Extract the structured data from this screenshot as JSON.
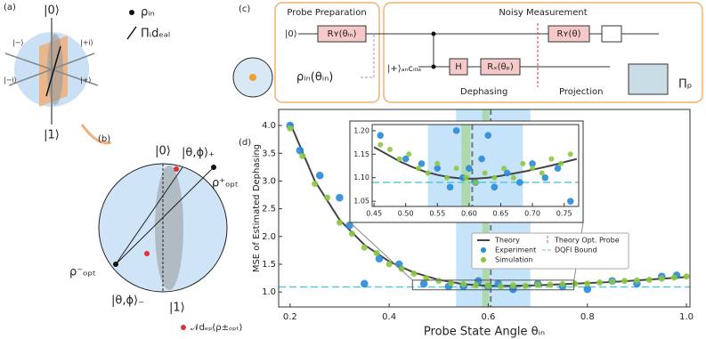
{
  "panel_a": {
    "label": "(a)",
    "states": [
      "|0⟩",
      "|1⟩",
      "|−⟩",
      "|+i⟩",
      "|−i⟩",
      "|+⟩"
    ],
    "legend": [
      "ρᵢₙ",
      "Πᵢdₑₐₗ"
    ]
  },
  "panel_b": {
    "label": "(b)",
    "texts": [
      "|0⟩",
      "|θ,ϕ⟩₊",
      "ρ⁺ₒₚₜ",
      "ρ⁻ₒₚₜ",
      "|θ,ϕ⟩₋",
      "|1⟩",
      "𝒩dₑₚ(ρ±ₒₚₜ)"
    ]
  },
  "panel_c": {
    "label": "(c)",
    "prep_title": "Probe Preparation",
    "meas_title": "Noisy Measurement",
    "ket0": "|0⟩",
    "ry_in": "Rʏ(θᵢₙ)",
    "rho": "ρᵢₙ(θᵢₙ)",
    "ancilla": "|+⟩ₐₙcᵢₗₗₐ",
    "h": "H",
    "rx": "Rₓ(θₚ)",
    "ry": "Rʏ(θ)",
    "dephasing": "Dephasing",
    "projection": "Projection",
    "pi_p": "Πₚ"
  },
  "chart_data": [
    {
      "type": "scatter",
      "label": "(d)",
      "xlabel": "Probe State Angle θᵢₙ",
      "ylabel": "MSE of Estimated Dephasing",
      "xlim": [
        0.177,
        1.007
      ],
      "ylim": [
        0.73,
        4.29
      ],
      "xticks": [
        0.2,
        0.4,
        0.6,
        0.8,
        {
          "value": 1,
          "label": "1.0"
        }
      ],
      "yticks": [
        {
          "value": 1,
          "label": "1.0"
        },
        1.5,
        {
          "value": 2,
          "label": "2.0"
        },
        2.5,
        {
          "value": 3,
          "label": "3.0"
        },
        3.5,
        {
          "value": 4,
          "label": "4.0"
        }
      ],
      "bands": [
        {
          "range": [
            0.535,
            0.685
          ],
          "color": "#9fd0f5"
        },
        {
          "range": [
            0.588,
            0.602
          ],
          "color": "#9fd17a"
        }
      ],
      "vline": {
        "name": "Theory Opt. Probe",
        "x": 0.605,
        "color": "#777777"
      },
      "hline": {
        "name": "DQFI Bound",
        "y": 1.09,
        "color": "#5bc8d6"
      },
      "series": [
        {
          "name": "Theory",
          "mode": "line",
          "color": "#444444",
          "x": [
            0.2,
            0.25,
            0.3,
            0.35,
            0.4,
            0.45,
            0.5,
            0.55,
            0.6,
            0.65,
            0.7,
            0.75,
            0.8,
            0.85,
            0.9,
            0.95,
            1.0
          ],
          "values": [
            4.05,
            3.0,
            2.3,
            1.85,
            1.55,
            1.35,
            1.22,
            1.14,
            1.11,
            1.11,
            1.12,
            1.14,
            1.16,
            1.18,
            1.21,
            1.24,
            1.27
          ]
        },
        {
          "name": "Experiment",
          "mode": "markers",
          "color": "#2a8ad8",
          "x": [
            0.2,
            0.22,
            0.26,
            0.3,
            0.32,
            0.35,
            0.38,
            0.42,
            0.47,
            0.52,
            0.55,
            0.58,
            0.6,
            0.62,
            0.65,
            0.7,
            0.75,
            0.8,
            0.85,
            0.9,
            0.95,
            0.98
          ],
          "values": [
            4.0,
            3.55,
            3.1,
            2.7,
            2.2,
            1.15,
            1.6,
            1.5,
            1.15,
            1.1,
            1.1,
            1.2,
            1.1,
            1.15,
            1.05,
            1.15,
            1.1,
            1.05,
            1.2,
            1.15,
            1.28,
            1.3
          ]
        },
        {
          "name": "Simulation",
          "mode": "markers",
          "color": "#8cc63f",
          "x": [
            0.2,
            0.225,
            0.25,
            0.275,
            0.3,
            0.325,
            0.35,
            0.375,
            0.4,
            0.425,
            0.45,
            0.475,
            0.5,
            0.525,
            0.55,
            0.575,
            0.6,
            0.625,
            0.65,
            0.675,
            0.7,
            0.725,
            0.75,
            0.775,
            0.8,
            0.825,
            0.85,
            0.875,
            0.9,
            0.925,
            0.95,
            0.975,
            1.0
          ],
          "values": [
            3.95,
            3.45,
            2.95,
            2.7,
            2.25,
            2.05,
            1.8,
            1.7,
            1.5,
            1.42,
            1.33,
            1.25,
            1.2,
            1.16,
            1.14,
            1.12,
            1.11,
            1.1,
            1.12,
            1.11,
            1.13,
            1.13,
            1.14,
            1.15,
            1.15,
            1.17,
            1.19,
            1.2,
            1.21,
            1.22,
            1.24,
            1.26,
            1.28
          ]
        }
      ]
    },
    {
      "type": "scatter",
      "xlim": [
        0.447,
        0.773
      ],
      "ylim": [
        1.039,
        1.213
      ],
      "xticks": [
        0.45,
        {
          "value": 0.5,
          "label": "0.50"
        },
        0.55,
        {
          "value": 0.6,
          "label": "0.60"
        },
        0.65,
        {
          "value": 0.7,
          "label": "0.70"
        },
        0.75
      ],
      "yticks": [
        1.05,
        {
          "value": 1.1,
          "label": "1.10"
        },
        1.15,
        {
          "value": 1.2,
          "label": "1.20"
        }
      ],
      "bands": [
        {
          "range": [
            0.535,
            0.685
          ],
          "color": "#9fd0f5"
        },
        {
          "range": [
            0.588,
            0.602
          ],
          "color": "#9fd17a"
        }
      ],
      "vline": {
        "x": 0.605,
        "color": "#777777"
      },
      "hline": {
        "y": 1.09,
        "color": "#5bc8d6"
      },
      "series": [
        {
          "mode": "line",
          "color": "#444444",
          "x": [
            0.45,
            0.47,
            0.49,
            0.51,
            0.53,
            0.55,
            0.57,
            0.59,
            0.61,
            0.63,
            0.65,
            0.67,
            0.69,
            0.71,
            0.73,
            0.75,
            0.77
          ],
          "values": [
            1.165,
            1.15,
            1.135,
            1.123,
            1.113,
            1.106,
            1.101,
            1.098,
            1.098,
            1.1,
            1.104,
            1.109,
            1.114,
            1.12,
            1.126,
            1.133,
            1.14
          ]
        },
        {
          "mode": "markers",
          "color": "#2a8ad8",
          "x": [
            0.46,
            0.5,
            0.525,
            0.55,
            0.57,
            0.58,
            0.59,
            0.6,
            0.61,
            0.62,
            0.63,
            0.64,
            0.66,
            0.68,
            0.7,
            0.72,
            0.74,
            0.76
          ],
          "values": [
            1.19,
            1.14,
            1.13,
            1.12,
            1.08,
            1.2,
            1.1,
            1.12,
            1.09,
            1.14,
            1.19,
            1.08,
            1.11,
            1.09,
            1.13,
            1.1,
            1.12,
            1.05
          ]
        },
        {
          "mode": "markers",
          "color": "#8cc63f",
          "x": [
            0.46,
            0.475,
            0.49,
            0.505,
            0.52,
            0.535,
            0.55,
            0.565,
            0.58,
            0.595,
            0.61,
            0.625,
            0.64,
            0.655,
            0.67,
            0.685,
            0.7,
            0.715,
            0.73,
            0.745,
            0.76
          ],
          "values": [
            1.17,
            1.16,
            1.14,
            1.15,
            1.12,
            1.11,
            1.13,
            1.1,
            1.12,
            1.1,
            1.09,
            1.11,
            1.1,
            1.12,
            1.1,
            1.13,
            1.12,
            1.11,
            1.14,
            1.13,
            1.15
          ]
        }
      ]
    }
  ]
}
